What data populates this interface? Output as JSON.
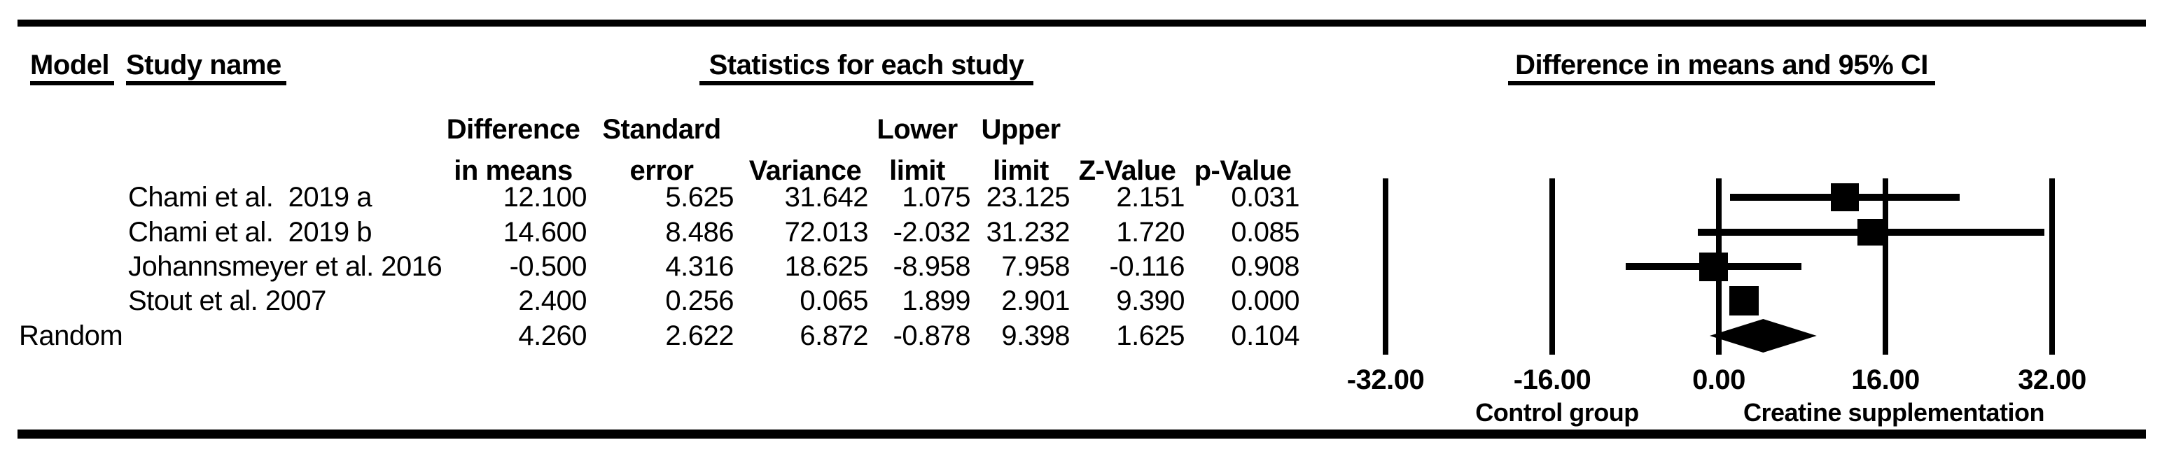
{
  "header": {
    "model_label": "Model",
    "study_name_label": "Study name",
    "stats_group_label": "Statistics for each study",
    "plot_group_label": "Difference in means and 95% CI"
  },
  "columns": [
    {
      "id": "diff",
      "line1": "Difference",
      "line2": "in means"
    },
    {
      "id": "se",
      "line1": "Standard",
      "line2": "error"
    },
    {
      "id": "variance",
      "line1": "",
      "line2": "Variance"
    },
    {
      "id": "lower",
      "line1": "Lower",
      "line2": "limit"
    },
    {
      "id": "upper",
      "line1": "Upper",
      "line2": "limit"
    },
    {
      "id": "z",
      "line1": "",
      "line2": "Z-Value"
    },
    {
      "id": "p",
      "line1": "",
      "line2": "p-Value"
    }
  ],
  "table": {
    "rows": [
      {
        "model": "",
        "study": "Chami et al.  2019 a",
        "diff": "12.100",
        "se": "5.625",
        "variance": "31.642",
        "lower": "1.075",
        "upper": "23.125",
        "z": "2.151",
        "p": "0.031"
      },
      {
        "model": "",
        "study": "Chami et al.  2019 b",
        "diff": "14.600",
        "se": "8.486",
        "variance": "72.013",
        "lower": "-2.032",
        "upper": "31.232",
        "z": "1.720",
        "p": "0.085"
      },
      {
        "model": "",
        "study": "Johannsmeyer et al. 2016",
        "diff": "-0.500",
        "se": "4.316",
        "variance": "18.625",
        "lower": "-8.958",
        "upper": "7.958",
        "z": "-0.116",
        "p": "0.908"
      },
      {
        "model": "",
        "study": "Stout et al. 2007",
        "diff": "2.400",
        "se": "0.256",
        "variance": "0.065",
        "lower": "1.899",
        "upper": "2.901",
        "z": "9.390",
        "p": "0.000"
      },
      {
        "model": "Random",
        "study": "",
        "diff": "4.260",
        "se": "2.622",
        "variance": "6.872",
        "lower": "-0.878",
        "upper": "9.398",
        "z": "1.625",
        "p": "0.104"
      }
    ]
  },
  "chart_data": {
    "type": "forest",
    "title": "Difference in means and 95% CI",
    "x_ticks": [
      -32,
      -16,
      0,
      16,
      32
    ],
    "x_tick_labels": [
      "-32.00",
      "-16.00",
      "0.00",
      "16.00",
      "32.00"
    ],
    "xlim": [
      -32,
      32
    ],
    "grid": "vertical-lines-at-ticks",
    "x_axis_left_label": "Control group",
    "x_axis_right_label": "Creatine supplementation",
    "studies": [
      {
        "name": "Chami et al.  2019 a",
        "mean": 12.1,
        "lower": 1.075,
        "upper": 23.125
      },
      {
        "name": "Chami et al.  2019 b",
        "mean": 14.6,
        "lower": -2.032,
        "upper": 31.232
      },
      {
        "name": "Johannsmeyer et al. 2016",
        "mean": -0.5,
        "lower": -8.958,
        "upper": 7.958
      },
      {
        "name": "Stout et al. 2007",
        "mean": 2.4,
        "lower": 1.899,
        "upper": 2.901
      }
    ],
    "summary": {
      "model": "Random",
      "shape": "diamond",
      "mean": 4.26,
      "lower": -0.878,
      "upper": 9.398
    },
    "marker_px": [
      40,
      38,
      41,
      42
    ]
  },
  "colors": {
    "ink": "#000000",
    "paper": "#ffffff"
  }
}
